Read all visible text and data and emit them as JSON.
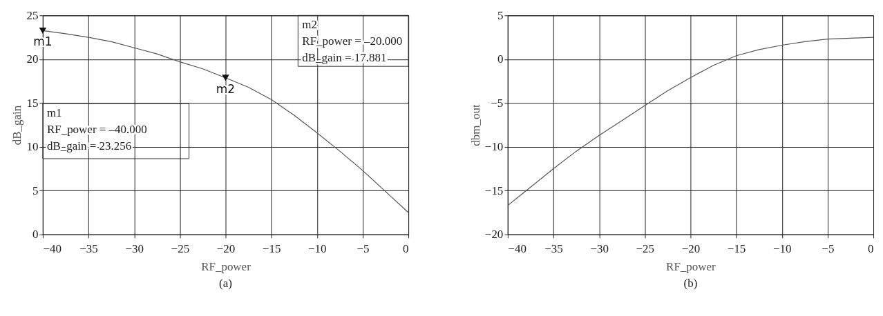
{
  "chart_data": [
    {
      "type": "line",
      "title": "(a)",
      "xlabel": "RF_power",
      "ylabel": "dB_gain",
      "x": [
        -40,
        -37.5,
        -35,
        -32.5,
        -30,
        -27.5,
        -25,
        -22.5,
        -20,
        -17.5,
        -15,
        -12.5,
        -10,
        -7.5,
        -5,
        -2.5,
        0
      ],
      "series": [
        {
          "color": "#555555",
          "values": [
            23.256,
            22.9,
            22.5,
            22.0,
            21.3,
            20.6,
            19.7,
            18.9,
            17.881,
            16.8,
            15.4,
            13.6,
            11.6,
            9.5,
            7.3,
            4.9,
            2.5
          ]
        },
        {
          "type": "scatter",
          "marker": "triangle",
          "color": "#111111",
          "x": [
            -40,
            -20
          ],
          "values": [
            23.256,
            17.881
          ]
        }
      ],
      "xlim": [
        -40,
        0
      ],
      "xticks": [
        -40,
        -35,
        -30,
        -25,
        -20,
        -15,
        -10,
        -5,
        0
      ],
      "ylim": [
        0,
        25
      ],
      "yticks": [
        0,
        5,
        10,
        15,
        20,
        25
      ],
      "grid": true,
      "marker": "none",
      "line_style": "solid",
      "annotations": [
        {
          "text": "m1",
          "x": -40,
          "y": 23.256
        },
        {
          "text": "m2",
          "x": -20,
          "y": 17.881
        },
        "m1\nRF_power = –40.000\ndB_gain = 23.256",
        "m2\nRF_power = –20.000\ndB_gain = 17.881"
      ]
    },
    {
      "type": "line",
      "title": "(b)",
      "xlabel": "RF_power",
      "ylabel": "dbm_out",
      "x": [
        -40,
        -37.5,
        -35,
        -32.5,
        -30,
        -27.5,
        -25,
        -22.5,
        -20,
        -17.5,
        -15,
        -12.5,
        -10,
        -7.5,
        -5,
        -2.5,
        0
      ],
      "series": [
        {
          "color": "#555555",
          "values": [
            -16.7,
            -14.6,
            -12.5,
            -10.5,
            -8.7,
            -7.0,
            -5.3,
            -3.6,
            -2.1,
            -0.7,
            0.4,
            1.1,
            1.6,
            2.0,
            2.3,
            2.4,
            2.5
          ]
        }
      ],
      "xlim": [
        -40,
        0
      ],
      "xticks": [
        -40,
        -35,
        -30,
        -25,
        -20,
        -15,
        -10,
        -5,
        0
      ],
      "ylim": [
        -20,
        5
      ],
      "yticks": [
        -20,
        -15,
        -10,
        -5,
        0,
        5
      ],
      "grid": true,
      "marker": "none",
      "line_style": "solid"
    }
  ]
}
